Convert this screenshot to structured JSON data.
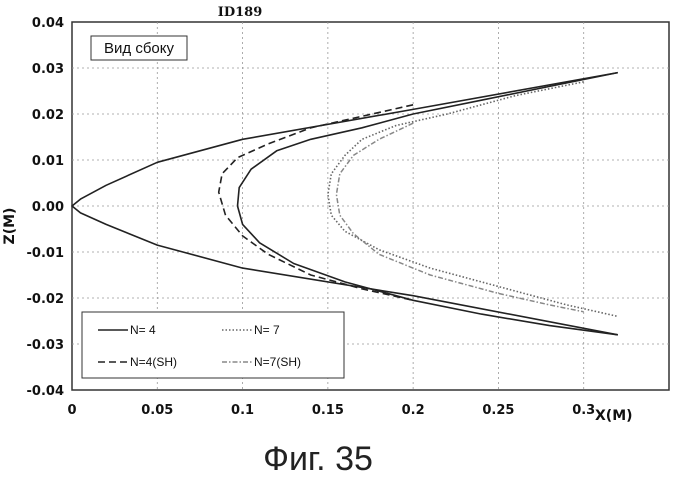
{
  "chart_data": {
    "type": "line",
    "title": "ID189",
    "annotation": "Вид сбоку",
    "xlabel": "X(M)",
    "ylabel": "Z(M)",
    "xlim": [
      0,
      0.35
    ],
    "ylim": [
      -0.04,
      0.04
    ],
    "grid": true,
    "legend_position": "bottom-left",
    "x_ticks": [
      "0",
      "0.05",
      "0.1",
      "0.15",
      "0.2",
      "0.25",
      "0.3"
    ],
    "y_ticks": [
      "0.04",
      "0.03",
      "0.02",
      "0.01",
      "0.00",
      "-0.01",
      "-0.02",
      "-0.03",
      "-0.04"
    ],
    "series": [
      {
        "name": "N= 4",
        "style": "solid",
        "color": "#222222",
        "x": [
          0.32,
          0.28,
          0.24,
          0.2,
          0.17,
          0.14,
          0.12,
          0.105,
          0.098,
          0.097,
          0.1,
          0.11,
          0.13,
          0.16,
          0.2,
          0.24,
          0.28,
          0.32
        ],
        "y": [
          0.029,
          0.026,
          0.023,
          0.02,
          0.017,
          0.0145,
          0.012,
          0.008,
          0.004,
          0.0,
          -0.004,
          -0.008,
          -0.0125,
          -0.0165,
          -0.0205,
          -0.0235,
          -0.026,
          -0.028
        ],
        "closure_x": [
          0.32,
          0.2,
          0.1,
          0.05,
          0.02,
          0.005,
          0.0,
          0.005,
          0.02,
          0.05,
          0.1,
          0.2,
          0.32
        ],
        "closure_y": [
          0.029,
          0.021,
          0.0145,
          0.0095,
          0.0045,
          0.0015,
          0.0,
          -0.0015,
          -0.004,
          -0.0085,
          -0.0135,
          -0.0195,
          -0.028
        ]
      },
      {
        "name": "N= 7",
        "style": "dotted",
        "color": "#666666",
        "x": [
          0.3,
          0.26,
          0.22,
          0.19,
          0.17,
          0.16,
          0.152,
          0.15,
          0.152,
          0.16,
          0.18,
          0.21,
          0.25,
          0.29,
          0.32
        ],
        "y": [
          0.027,
          0.024,
          0.02,
          0.0175,
          0.0145,
          0.011,
          0.007,
          0.0025,
          -0.002,
          -0.0055,
          -0.0095,
          -0.0135,
          -0.0175,
          -0.0215,
          -0.024
        ]
      },
      {
        "name": "N=4(SH)",
        "style": "dashed",
        "color": "#222222",
        "x": [
          0.2,
          0.17,
          0.14,
          0.115,
          0.097,
          0.088,
          0.086,
          0.09,
          0.1,
          0.115,
          0.14,
          0.17,
          0.2
        ],
        "y": [
          0.022,
          0.0195,
          0.017,
          0.0135,
          0.0105,
          0.007,
          0.003,
          -0.002,
          -0.0065,
          -0.0105,
          -0.015,
          -0.018,
          -0.0205
        ]
      },
      {
        "name": "N=7(SH)",
        "style": "dash-dot",
        "color": "#888888",
        "x": [
          0.2,
          0.18,
          0.165,
          0.157,
          0.155,
          0.157,
          0.165,
          0.18,
          0.21,
          0.25,
          0.28,
          0.3
        ],
        "y": [
          0.018,
          0.0145,
          0.011,
          0.007,
          0.0025,
          -0.002,
          -0.006,
          -0.0105,
          -0.015,
          -0.019,
          -0.0215,
          -0.023
        ]
      }
    ]
  },
  "figure_caption": "Фиг. 35"
}
